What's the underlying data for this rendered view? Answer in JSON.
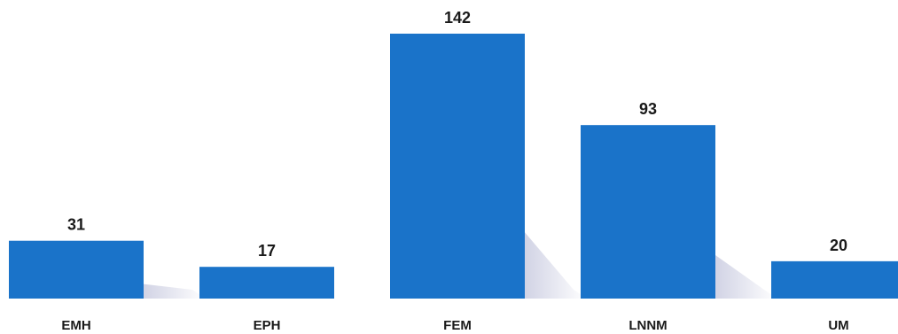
{
  "chart_data": {
    "type": "bar",
    "title": "",
    "xlabel": "",
    "ylabel": "",
    "categories": [
      "EMH",
      "EPH",
      "FEM",
      "LNNM",
      "UM"
    ],
    "values": [
      31,
      17,
      142,
      93,
      20
    ],
    "data_labels": [
      "31",
      "17",
      "142",
      "93",
      "20"
    ],
    "ylim": [
      0,
      142
    ],
    "grid": false,
    "legend": "none",
    "bar_color": "#1a73c9",
    "shadow_color": "#d9dbe6"
  }
}
